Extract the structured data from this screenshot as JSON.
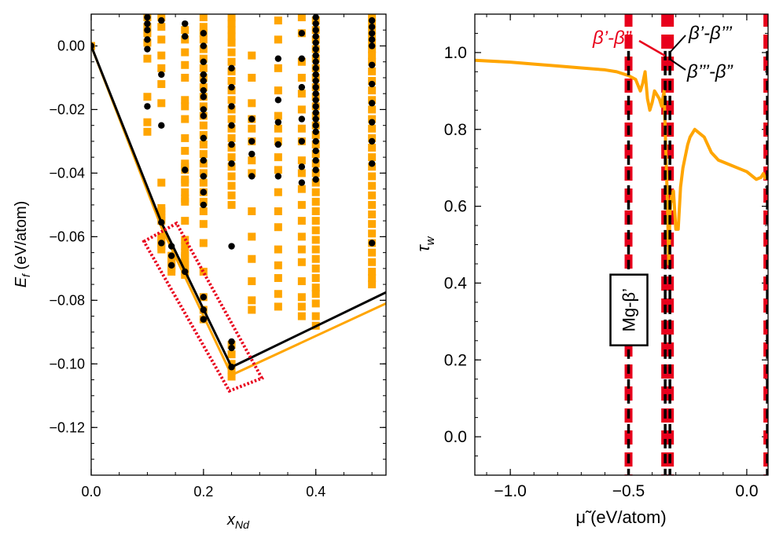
{
  "chart_data": [
    {
      "type": "scatter",
      "panel": "left",
      "xlabel": "x",
      "xlabel_sub": "Nd",
      "ylabel": "E",
      "ylabel_sub": "f",
      "ylabel_unit": " (eV/atom)",
      "xlim": [
        0.0,
        0.525
      ],
      "ylim": [
        -0.135,
        0.01
      ],
      "xticks": [
        0.0,
        0.2,
        0.4
      ],
      "xtick_labels": [
        "0.0",
        "0.2",
        "0.4"
      ],
      "yticks": [
        0.0,
        -0.02,
        -0.04,
        -0.06,
        -0.08,
        -0.1,
        -0.12
      ],
      "ytick_labels": [
        "0.00",
        "−0.02",
        "−0.04",
        "−0.06",
        "−0.08",
        "−0.10",
        "−0.12"
      ],
      "colors": {
        "orange": "#FFA500",
        "black": "#000000",
        "red": "#E8001C"
      },
      "hull_black": {
        "x": [
          0.0,
          0.125,
          0.25,
          0.525
        ],
        "y": [
          0.0,
          -0.0555,
          -0.101,
          -0.0775
        ]
      },
      "hull_orange": {
        "x": [
          0.0,
          0.125,
          0.25,
          0.525
        ],
        "y": [
          0.0,
          -0.057,
          -0.1035,
          -0.081
        ]
      },
      "square_columns": [
        {
          "x": 0.0,
          "y": [
            0.0
          ]
        },
        {
          "x": 0.1,
          "y": [
            0.009,
            0.006,
            0.004,
            0.001,
            -0.004,
            -0.016,
            -0.024,
            -0.027
          ]
        },
        {
          "x": 0.125,
          "y": [
            0.009,
            0.006,
            0.002,
            -0.003,
            -0.007,
            -0.012,
            -0.018,
            -0.043,
            -0.051,
            -0.052,
            -0.053,
            -0.054,
            -0.055,
            -0.06,
            -0.061,
            -0.062,
            -0.063,
            -0.064
          ]
        },
        {
          "x": 0.143,
          "y": [
            -0.066,
            -0.067,
            -0.068,
            -0.069,
            -0.07,
            -0.071
          ]
        },
        {
          "x": 0.167,
          "y": [
            0.005,
            0.002,
            -0.002,
            -0.006,
            -0.01,
            -0.017,
            -0.019,
            -0.023,
            -0.029,
            -0.033,
            -0.037,
            -0.038,
            -0.039,
            -0.042,
            -0.043,
            -0.046,
            -0.048,
            -0.049,
            -0.055,
            -0.061,
            -0.063,
            -0.065,
            -0.066,
            -0.067,
            -0.068,
            -0.069,
            -0.07,
            -0.071,
            -0.072
          ]
        },
        {
          "x": 0.2,
          "y": [
            0.009,
            0.006,
            0.004,
            0.002,
            -0.001,
            -0.004,
            -0.007,
            -0.01,
            -0.013,
            -0.016,
            -0.019,
            -0.022,
            -0.025,
            -0.028,
            -0.031,
            -0.034,
            -0.037,
            -0.04,
            -0.043,
            -0.046,
            -0.049,
            -0.052,
            -0.056,
            -0.062,
            -0.071,
            -0.079,
            -0.083,
            -0.086
          ]
        },
        {
          "x": 0.25,
          "y": [
            0.009,
            0.007,
            0.005,
            0.003,
            0.001,
            -0.002,
            -0.005,
            -0.008,
            -0.011,
            -0.014,
            -0.017,
            -0.02,
            -0.023,
            -0.026,
            -0.029,
            -0.032,
            -0.035,
            -0.038,
            -0.041,
            -0.044,
            -0.047,
            -0.05,
            -0.094,
            -0.097,
            -0.1,
            -0.102,
            -0.104
          ]
        },
        {
          "x": 0.286,
          "y": [
            -0.003,
            -0.01,
            -0.018,
            -0.023,
            -0.026,
            -0.03,
            -0.036,
            -0.04,
            -0.052,
            -0.06,
            -0.067,
            -0.074,
            -0.08,
            -0.083
          ]
        },
        {
          "x": 0.333,
          "y": [
            0.008,
            0.002,
            -0.007,
            -0.014,
            -0.022,
            -0.026,
            -0.03,
            -0.035,
            -0.039,
            -0.046,
            -0.052,
            -0.057,
            -0.064,
            -0.069,
            -0.073,
            -0.078,
            -0.082
          ]
        },
        {
          "x": 0.375,
          "y": [
            0.009,
            0.004,
            -0.005,
            -0.01,
            -0.015,
            -0.02,
            -0.026,
            -0.03,
            -0.036,
            -0.04,
            -0.045,
            -0.05,
            -0.055,
            -0.06,
            -0.064,
            -0.068,
            -0.074,
            -0.079,
            -0.082,
            -0.085
          ]
        },
        {
          "x": 0.4,
          "y": [
            0.008,
            0.005,
            0.002,
            -0.001,
            -0.004,
            -0.007,
            -0.01,
            -0.013,
            -0.016,
            -0.019,
            -0.022,
            -0.025,
            -0.028,
            -0.031,
            -0.034,
            -0.037,
            -0.04,
            -0.043,
            -0.046,
            -0.049,
            -0.052,
            -0.055,
            -0.058,
            -0.061,
            -0.064,
            -0.067,
            -0.07,
            -0.073,
            -0.076,
            -0.078,
            -0.081,
            -0.085,
            -0.088
          ]
        },
        {
          "x": 0.5,
          "y": [
            0.009,
            0.007,
            0.005,
            0.003,
            0.001,
            -0.001,
            -0.003,
            -0.005,
            -0.008,
            -0.011,
            -0.014,
            -0.017,
            -0.02,
            -0.023,
            -0.026,
            -0.029,
            -0.032,
            -0.035,
            -0.038,
            -0.041,
            -0.044,
            -0.047,
            -0.05,
            -0.053,
            -0.056,
            -0.059,
            -0.062,
            -0.065,
            -0.068,
            -0.071,
            -0.073,
            -0.075
          ]
        }
      ],
      "dot_columns": [
        {
          "x": 0.0,
          "y": [
            0.0
          ]
        },
        {
          "x": 0.1,
          "y": [
            0.009,
            0.007,
            0.005,
            0.002,
            -0.001,
            -0.019
          ]
        },
        {
          "x": 0.125,
          "y": [
            0.008,
            -0.009,
            -0.025,
            -0.0555,
            -0.062
          ]
        },
        {
          "x": 0.143,
          "y": [
            -0.063,
            -0.066,
            -0.069
          ]
        },
        {
          "x": 0.167,
          "y": [
            0.007,
            0.003,
            -0.039,
            -0.071
          ]
        },
        {
          "x": 0.2,
          "y": [
            0.004,
            0.0,
            -0.005,
            -0.009,
            -0.011,
            -0.014,
            -0.016,
            -0.02,
            -0.022,
            -0.029,
            -0.036,
            -0.041,
            -0.046,
            -0.05,
            -0.079,
            -0.083,
            -0.086
          ]
        },
        {
          "x": 0.25,
          "y": [
            -0.007,
            -0.013,
            -0.019,
            -0.025,
            -0.031,
            -0.037,
            -0.063,
            -0.093,
            -0.095,
            -0.101
          ]
        },
        {
          "x": 0.286,
          "y": [
            -0.023,
            -0.03,
            -0.034,
            -0.041
          ]
        },
        {
          "x": 0.333,
          "y": [
            -0.004,
            -0.017,
            -0.024,
            -0.031,
            -0.041
          ]
        },
        {
          "x": 0.375,
          "y": [
            0.004,
            -0.004,
            -0.013,
            -0.023,
            -0.03,
            -0.038,
            -0.043
          ]
        },
        {
          "x": 0.4,
          "y": [
            0.009,
            0.007,
            0.005,
            0.003,
            0.001,
            -0.001,
            -0.003,
            -0.005,
            -0.007,
            -0.009,
            -0.011,
            -0.013,
            -0.015,
            -0.017,
            -0.019,
            -0.021,
            -0.023,
            -0.025,
            -0.027,
            -0.03,
            -0.033,
            -0.036,
            -0.039,
            -0.042
          ]
        },
        {
          "x": 0.5,
          "y": [
            0.008,
            0.006,
            0.004,
            0.002,
            0.0,
            -0.006,
            -0.012,
            -0.018,
            -0.024,
            -0.03,
            -0.037,
            -0.062
          ]
        }
      ],
      "highlight_box": {
        "corners": [
          [
            0.094,
            -0.0615
          ],
          [
            0.152,
            -0.0558
          ],
          [
            0.304,
            -0.1045
          ],
          [
            0.246,
            -0.1085
          ]
        ]
      }
    },
    {
      "type": "line",
      "panel": "right",
      "xlabel": "μ̃ (eV/atom)",
      "ylabel": "τ",
      "ylabel_sub": "w",
      "xlim": [
        -1.15,
        0.09
      ],
      "ylim": [
        -0.1,
        1.1
      ],
      "xticks": [
        -1.0,
        -0.5,
        0.0
      ],
      "xtick_labels": [
        "−1.0",
        "−0.5",
        "0.0"
      ],
      "yticks": [
        0.0,
        0.2,
        0.4,
        0.6,
        0.8,
        1.0
      ],
      "ytick_labels": [
        "0.0",
        "0.2",
        "0.4",
        "0.6",
        "0.8",
        "1.0"
      ],
      "line_color": "#FFA500",
      "tau_curve": {
        "x": [
          -1.15,
          -1.0,
          -0.9,
          -0.8,
          -0.7,
          -0.6,
          -0.55,
          -0.5,
          -0.47,
          -0.45,
          -0.44,
          -0.43,
          -0.42,
          -0.41,
          -0.4,
          -0.39,
          -0.38,
          -0.37,
          -0.36,
          -0.35,
          -0.345,
          -0.34,
          -0.335,
          -0.33,
          -0.325,
          -0.32,
          -0.31,
          -0.3,
          -0.29,
          -0.28,
          -0.27,
          -0.26,
          -0.25,
          -0.24,
          -0.23,
          -0.22,
          -0.2,
          -0.18,
          -0.15,
          -0.12,
          -0.08,
          -0.04,
          0.0,
          0.02,
          0.04,
          0.06,
          0.07,
          0.08
        ],
        "y": [
          0.98,
          0.975,
          0.97,
          0.965,
          0.96,
          0.955,
          0.95,
          0.94,
          0.93,
          0.9,
          0.92,
          0.95,
          0.88,
          0.85,
          0.87,
          0.9,
          0.89,
          0.88,
          0.86,
          0.9,
          0.8,
          0.7,
          0.6,
          0.45,
          0.58,
          0.62,
          0.64,
          0.54,
          0.54,
          0.65,
          0.7,
          0.73,
          0.76,
          0.78,
          0.79,
          0.8,
          0.79,
          0.78,
          0.74,
          0.72,
          0.71,
          0.7,
          0.69,
          0.68,
          0.67,
          0.675,
          0.685,
          0.67
        ]
      },
      "vlines": [
        -0.5,
        -0.345,
        -0.325,
        0.087
      ],
      "mg_label_y": 0.33,
      "mg_label": "Mg-β’",
      "annotations": [
        {
          "text": "β’-β”",
          "color": "#E8001C"
        },
        {
          "text": "β’-β’’’",
          "color": "#000000"
        },
        {
          "text": "β’’’-β”",
          "color": "#000000"
        }
      ]
    }
  ]
}
